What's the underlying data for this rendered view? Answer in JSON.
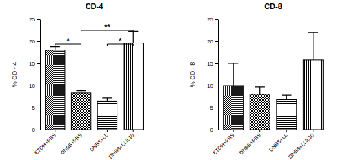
{
  "chart_data": [
    {
      "type": "bar",
      "title": "CD-4",
      "y_label": "% CD - 4",
      "categories": [
        "ETOH+PBS",
        "DNBS+PBS",
        "DNBS+LL",
        "DNBS+LLIL10"
      ],
      "values": [
        18.0,
        8.3,
        6.5,
        19.6
      ],
      "errors": [
        0.8,
        0.5,
        0.7,
        2.7
      ],
      "color": "#000000",
      "ylim": [
        0,
        25
      ],
      "yticks": [
        0,
        5,
        10,
        15,
        20,
        25
      ],
      "annotations": [
        {
          "text": "*",
          "categories": [
            "ETOH+PBS",
            "DNBS+PBS"
          ]
        },
        {
          "text": "**",
          "categories": [
            "DNBS+PBS",
            "DNBS+LLIL10"
          ]
        },
        {
          "text": "*",
          "categories": [
            "DNBS+LL",
            "DNBS+LLIL10"
          ]
        }
      ]
    },
    {
      "type": "bar",
      "title": "CD-8",
      "y_label": "% CD - 8",
      "categories": [
        "ETOH+PBS",
        "DNBS+PBS",
        "DNBS+LL",
        "DNBS+LLIL10"
      ],
      "values": [
        10.0,
        8.0,
        6.8,
        15.8
      ],
      "errors": [
        5.0,
        1.7,
        1.0,
        6.2
      ],
      "color": "#000000",
      "ylim": [
        0,
        25
      ],
      "yticks": [
        0,
        5,
        10,
        15,
        20,
        25
      ]
    }
  ]
}
